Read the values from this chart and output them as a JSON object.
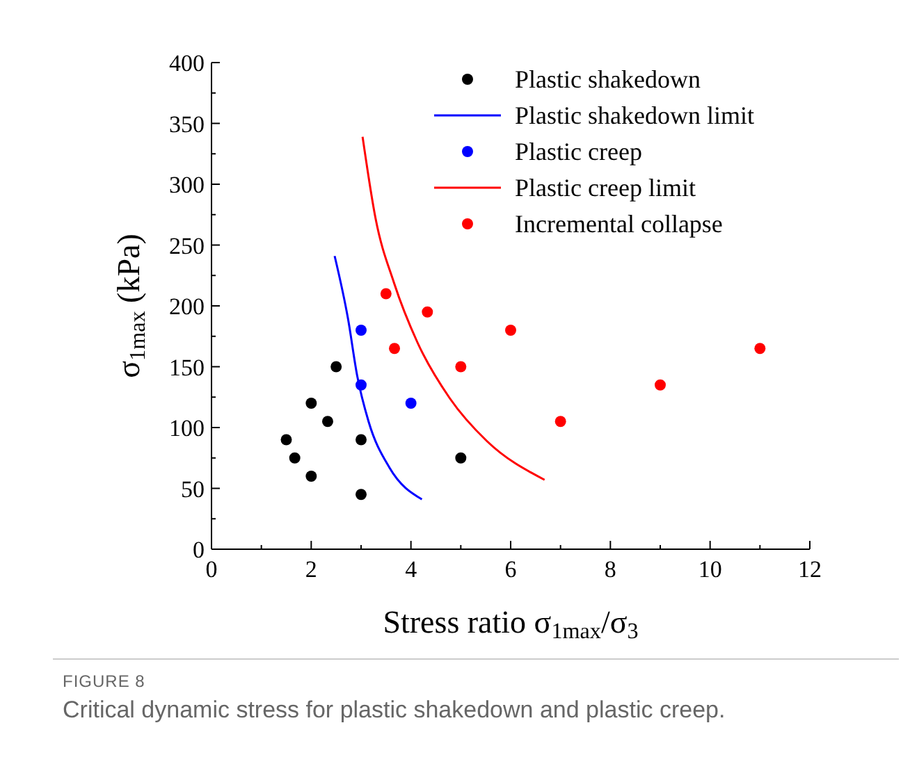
{
  "chart_data": {
    "type": "scatter",
    "xlabel": "Stress ratio σ$_{1max}$/σ$_{3}$",
    "ylabel": "σ$_{1max}$ (kPa)",
    "xlim": [
      0,
      12
    ],
    "ylim": [
      0,
      400
    ],
    "xticks": [
      0,
      {
        "value": 1,
        "label": null
      },
      2,
      {
        "value": 3,
        "label": null
      },
      4,
      {
        "value": 5,
        "label": null
      },
      6,
      {
        "value": 7,
        "label": null
      },
      8,
      {
        "value": 9,
        "label": null
      },
      10,
      {
        "value": 11,
        "label": null
      },
      12
    ],
    "yticks": [
      0,
      {
        "value": 25,
        "label": null
      },
      50,
      {
        "value": 75,
        "label": null
      },
      100,
      {
        "value": 125,
        "label": null
      },
      150,
      {
        "value": 175,
        "label": null
      },
      200,
      {
        "value": 225,
        "label": null
      },
      250,
      {
        "value": 275,
        "label": null
      },
      300,
      {
        "value": 325,
        "label": null
      },
      350,
      {
        "value": 375,
        "label": null
      },
      400
    ],
    "legend": "top right",
    "grid": false,
    "series": [
      {
        "name": "Plastic shakedown",
        "marker": "circle",
        "color": "#000000",
        "x": [
          1.5,
          1.67,
          2,
          2,
          2.33,
          2.5,
          3,
          3,
          5
        ],
        "values": [
          90,
          75,
          60,
          120,
          105,
          150,
          90,
          45,
          75
        ]
      },
      {
        "name": "Plastic shakedown limit",
        "type": "line",
        "marker": "none",
        "color": "#0000ff",
        "x": [
          2.47,
          2.74,
          2.92,
          3.15,
          3.57,
          4.22
        ],
        "values": [
          241,
          189,
          143,
          105,
          67,
          41
        ]
      },
      {
        "name": "Plastic creep",
        "marker": "circle",
        "color": "#0000ff",
        "x": [
          3,
          3,
          4
        ],
        "values": [
          180,
          135,
          120
        ]
      },
      {
        "name": "Plastic creep limit",
        "type": "line",
        "marker": "none",
        "color": "#ff0000",
        "x": [
          3.03,
          3.29,
          3.66,
          4.13,
          4.78,
          5.52,
          6.68
        ],
        "values": [
          339,
          272,
          219,
          170,
          124,
          89,
          57
        ]
      },
      {
        "name": "Incremental collapse",
        "marker": "circle",
        "color": "#ff0000",
        "x": [
          3.5,
          3.67,
          4.33,
          5,
          6,
          7,
          9,
          11
        ],
        "values": [
          210,
          165,
          195,
          150,
          180,
          105,
          135,
          165
        ]
      }
    ],
    "annotations": [
      "FIGURE 8",
      "Critical dynamic stress for plastic shakedown and plastic creep."
    ]
  }
}
